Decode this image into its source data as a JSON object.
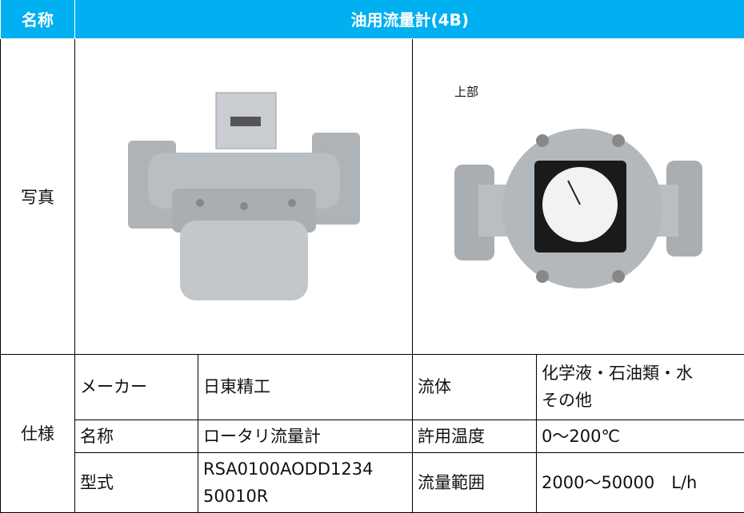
{
  "header": {
    "label": "名称",
    "title": "油用流量計(4B)"
  },
  "photo": {
    "label": "写真",
    "top_label": "上部"
  },
  "spec": {
    "label": "仕様",
    "rows": [
      [
        "メーカー",
        "日東精工",
        "流体",
        [
          "化学液・石油類・水",
          "その他"
        ]
      ],
      [
        "名称",
        "ロータリ流量計",
        "許用温度",
        "0～200℃"
      ],
      [
        "型式",
        [
          "RSA0100AODD1234",
          "50010R"
        ],
        "流量範囲",
        "2000～50000　L/h"
      ]
    ]
  }
}
